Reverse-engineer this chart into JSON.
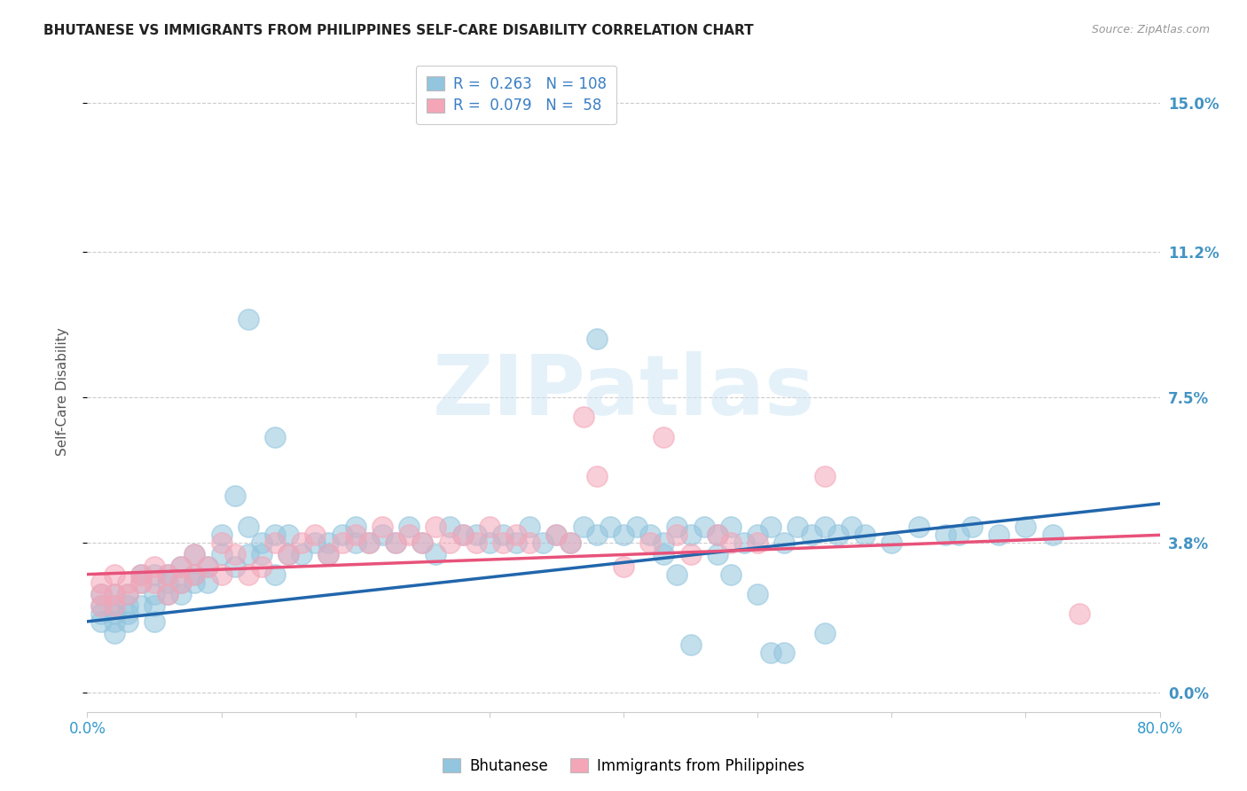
{
  "title": "BHUTANESE VS IMMIGRANTS FROM PHILIPPINES SELF-CARE DISABILITY CORRELATION CHART",
  "source": "Source: ZipAtlas.com",
  "ylabel": "Self-Care Disability",
  "ytick_labels": [
    "0.0%",
    "3.8%",
    "7.5%",
    "11.2%",
    "15.0%"
  ],
  "ytick_values": [
    0.0,
    0.038,
    0.075,
    0.112,
    0.15
  ],
  "xlim": [
    0.0,
    0.8
  ],
  "ylim": [
    -0.005,
    0.158
  ],
  "blue_color": "#92c5de",
  "pink_color": "#f4a6b8",
  "blue_line_color": "#2166ac",
  "pink_line_color": "#e8527a",
  "right_axis_color": "#4393c3",
  "watermark": "ZIPatlas",
  "blue_scatter_x": [
    0.01,
    0.01,
    0.01,
    0.01,
    0.02,
    0.02,
    0.02,
    0.02,
    0.02,
    0.03,
    0.03,
    0.03,
    0.03,
    0.04,
    0.04,
    0.04,
    0.05,
    0.05,
    0.05,
    0.05,
    0.06,
    0.06,
    0.06,
    0.07,
    0.07,
    0.07,
    0.08,
    0.08,
    0.08,
    0.09,
    0.09,
    0.1,
    0.1,
    0.11,
    0.11,
    0.12,
    0.12,
    0.13,
    0.13,
    0.14,
    0.14,
    0.15,
    0.15,
    0.16,
    0.17,
    0.18,
    0.18,
    0.19,
    0.2,
    0.2,
    0.21,
    0.22,
    0.23,
    0.24,
    0.25,
    0.26,
    0.27,
    0.28,
    0.29,
    0.3,
    0.31,
    0.32,
    0.33,
    0.34,
    0.35,
    0.36,
    0.37,
    0.38,
    0.39,
    0.4,
    0.41,
    0.42,
    0.43,
    0.44,
    0.45,
    0.46,
    0.47,
    0.48,
    0.49,
    0.5,
    0.51,
    0.52,
    0.53,
    0.54,
    0.55,
    0.56,
    0.57,
    0.58,
    0.6,
    0.62,
    0.64,
    0.65,
    0.66,
    0.68,
    0.7,
    0.72,
    0.12,
    0.14,
    0.38,
    0.43,
    0.44,
    0.45,
    0.47,
    0.5,
    0.48,
    0.51,
    0.52,
    0.55
  ],
  "blue_scatter_y": [
    0.02,
    0.018,
    0.022,
    0.025,
    0.02,
    0.022,
    0.018,
    0.015,
    0.025,
    0.022,
    0.02,
    0.018,
    0.025,
    0.028,
    0.022,
    0.03,
    0.025,
    0.03,
    0.022,
    0.018,
    0.03,
    0.025,
    0.028,
    0.032,
    0.028,
    0.025,
    0.03,
    0.028,
    0.035,
    0.032,
    0.028,
    0.04,
    0.035,
    0.05,
    0.032,
    0.042,
    0.035,
    0.038,
    0.035,
    0.04,
    0.03,
    0.04,
    0.035,
    0.035,
    0.038,
    0.035,
    0.038,
    0.04,
    0.042,
    0.038,
    0.038,
    0.04,
    0.038,
    0.042,
    0.038,
    0.035,
    0.042,
    0.04,
    0.04,
    0.038,
    0.04,
    0.038,
    0.042,
    0.038,
    0.04,
    0.038,
    0.042,
    0.04,
    0.042,
    0.04,
    0.042,
    0.04,
    0.038,
    0.042,
    0.04,
    0.042,
    0.04,
    0.042,
    0.038,
    0.04,
    0.042,
    0.038,
    0.042,
    0.04,
    0.042,
    0.04,
    0.042,
    0.04,
    0.038,
    0.042,
    0.04,
    0.04,
    0.042,
    0.04,
    0.042,
    0.04,
    0.095,
    0.065,
    0.09,
    0.035,
    0.03,
    0.012,
    0.035,
    0.025,
    0.03,
    0.01,
    0.01,
    0.015
  ],
  "pink_scatter_x": [
    0.01,
    0.01,
    0.01,
    0.02,
    0.02,
    0.02,
    0.03,
    0.03,
    0.04,
    0.04,
    0.05,
    0.05,
    0.06,
    0.06,
    0.07,
    0.07,
    0.08,
    0.08,
    0.09,
    0.1,
    0.1,
    0.11,
    0.12,
    0.13,
    0.14,
    0.15,
    0.16,
    0.17,
    0.18,
    0.19,
    0.2,
    0.21,
    0.22,
    0.23,
    0.24,
    0.25,
    0.26,
    0.27,
    0.28,
    0.29,
    0.3,
    0.31,
    0.32,
    0.33,
    0.35,
    0.36,
    0.37,
    0.38,
    0.4,
    0.42,
    0.43,
    0.44,
    0.45,
    0.47,
    0.48,
    0.5,
    0.55,
    0.74
  ],
  "pink_scatter_y": [
    0.025,
    0.022,
    0.028,
    0.03,
    0.025,
    0.022,
    0.028,
    0.025,
    0.03,
    0.028,
    0.032,
    0.028,
    0.03,
    0.025,
    0.032,
    0.028,
    0.035,
    0.03,
    0.032,
    0.038,
    0.03,
    0.035,
    0.03,
    0.032,
    0.038,
    0.035,
    0.038,
    0.04,
    0.035,
    0.038,
    0.04,
    0.038,
    0.042,
    0.038,
    0.04,
    0.038,
    0.042,
    0.038,
    0.04,
    0.038,
    0.042,
    0.038,
    0.04,
    0.038,
    0.04,
    0.038,
    0.07,
    0.055,
    0.032,
    0.038,
    0.065,
    0.04,
    0.035,
    0.04,
    0.038,
    0.038,
    0.055,
    0.02
  ],
  "blue_trend_x": [
    0.0,
    0.8
  ],
  "blue_trend_y": [
    0.018,
    0.048
  ],
  "pink_trend_x": [
    0.0,
    0.8
  ],
  "pink_trend_y": [
    0.03,
    0.04
  ],
  "bg_color": "#ffffff",
  "grid_color": "#cccccc",
  "legend_items": [
    {
      "label_prefix": "R = ",
      "r_val": "0.263",
      "n_prefix": "   N = ",
      "n_val": "108"
    },
    {
      "label_prefix": "R = ",
      "r_val": "0.079",
      "n_prefix": "   N =  ",
      "n_val": "58"
    }
  ]
}
